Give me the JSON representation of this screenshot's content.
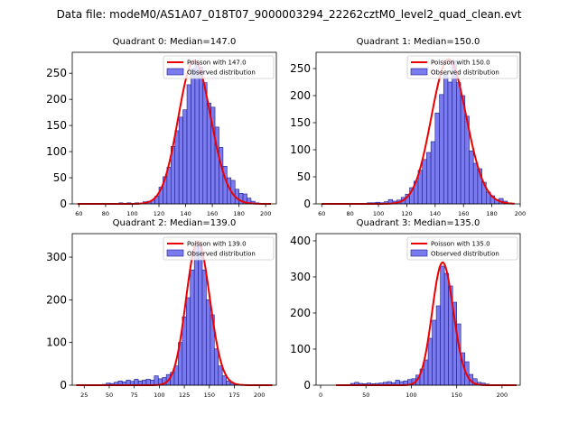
{
  "suptitle": "Data file: modeM0/AS1A07_018T07_9000003294_22262cztM0_level2_quad_clean.evt",
  "colors": {
    "bar_fill": "#7b7bf0",
    "bar_edge": "#1a1a8a",
    "poisson_line": "#ee0000"
  },
  "chart_data": [
    {
      "type": "bar",
      "title": "Quadrant 0: Median=147.0",
      "xlim": [
        55,
        208
      ],
      "ylim": [
        0,
        290
      ],
      "xticks": [
        60,
        80,
        100,
        120,
        140,
        160,
        180,
        200
      ],
      "yticks": [
        0,
        50,
        100,
        150,
        200,
        250
      ],
      "bin_width": 3,
      "bins": [
        [
          84,
          1
        ],
        [
          90,
          2
        ],
        [
          96,
          2
        ],
        [
          102,
          2
        ],
        [
          108,
          4
        ],
        [
          111,
          5
        ],
        [
          114,
          7
        ],
        [
          117,
          15
        ],
        [
          120,
          32
        ],
        [
          123,
          52
        ],
        [
          126,
          70
        ],
        [
          129,
          110
        ],
        [
          132,
          140
        ],
        [
          135,
          166
        ],
        [
          138,
          180
        ],
        [
          141,
          228
        ],
        [
          144,
          259
        ],
        [
          147,
          270
        ],
        [
          150,
          262
        ],
        [
          153,
          232
        ],
        [
          156,
          193
        ],
        [
          159,
          185
        ],
        [
          162,
          147
        ],
        [
          165,
          108
        ],
        [
          168,
          72
        ],
        [
          171,
          50
        ],
        [
          174,
          45
        ],
        [
          177,
          28
        ],
        [
          180,
          20
        ],
        [
          183,
          19
        ],
        [
          186,
          11
        ],
        [
          189,
          5
        ],
        [
          192,
          2
        ]
      ],
      "poisson": {
        "mean": 147.0,
        "scale": 274
      },
      "legend": {
        "line": "Poisson with 147.0",
        "bars": "Observed distribution",
        "loc": "upper right"
      }
    },
    {
      "type": "bar",
      "title": "Quadrant 1: Median=150.0",
      "xlim": [
        56,
        200
      ],
      "ylim": [
        0,
        280
      ],
      "xticks": [
        60,
        80,
        100,
        120,
        140,
        160,
        180,
        200
      ],
      "yticks": [
        0,
        50,
        100,
        150,
        200,
        250
      ],
      "bin_width": 3,
      "bins": [
        [
          92,
          2
        ],
        [
          95,
          2
        ],
        [
          98,
          3
        ],
        [
          101,
          2
        ],
        [
          104,
          4
        ],
        [
          107,
          8
        ],
        [
          110,
          5
        ],
        [
          113,
          7
        ],
        [
          116,
          12
        ],
        [
          119,
          18
        ],
        [
          122,
          30
        ],
        [
          125,
          42
        ],
        [
          128,
          62
        ],
        [
          131,
          82
        ],
        [
          134,
          95
        ],
        [
          137,
          115
        ],
        [
          140,
          168
        ],
        [
          143,
          202
        ],
        [
          146,
          240
        ],
        [
          149,
          225
        ],
        [
          152,
          265
        ],
        [
          155,
          224
        ],
        [
          158,
          200
        ],
        [
          161,
          162
        ],
        [
          164,
          98
        ],
        [
          167,
          75
        ],
        [
          170,
          65
        ],
        [
          173,
          40
        ],
        [
          176,
          22
        ],
        [
          179,
          15
        ],
        [
          182,
          8
        ],
        [
          185,
          10
        ],
        [
          188,
          5
        ],
        [
          191,
          2
        ]
      ],
      "poisson": {
        "mean": 150.0,
        "scale": 267
      },
      "legend": {
        "line": "Poisson with 150.0",
        "bars": "Observed distribution",
        "loc": "upper right"
      }
    },
    {
      "type": "bar",
      "title": "Quadrant 2: Median=139.0",
      "xlim": [
        13,
        217
      ],
      "ylim": [
        0,
        355
      ],
      "xticks": [
        25,
        50,
        75,
        100,
        125,
        150,
        175,
        200
      ],
      "yticks": [
        0,
        100,
        200,
        300
      ],
      "bin_width": 4,
      "bins": [
        [
          43,
          2
        ],
        [
          47,
          5
        ],
        [
          51,
          4
        ],
        [
          55,
          7
        ],
        [
          59,
          10
        ],
        [
          63,
          8
        ],
        [
          67,
          12
        ],
        [
          71,
          9
        ],
        [
          75,
          14
        ],
        [
          79,
          10
        ],
        [
          83,
          12
        ],
        [
          87,
          14
        ],
        [
          91,
          12
        ],
        [
          95,
          22
        ],
        [
          99,
          15
        ],
        [
          103,
          18
        ],
        [
          107,
          25
        ],
        [
          111,
          30
        ],
        [
          115,
          45
        ],
        [
          119,
          100
        ],
        [
          123,
          160
        ],
        [
          127,
          205
        ],
        [
          131,
          270
        ],
        [
          135,
          325
        ],
        [
          139,
          330
        ],
        [
          143,
          270
        ],
        [
          147,
          200
        ],
        [
          151,
          165
        ],
        [
          155,
          85
        ],
        [
          159,
          45
        ],
        [
          163,
          22
        ],
        [
          167,
          10
        ],
        [
          171,
          6
        ],
        [
          175,
          3
        ]
      ],
      "poisson": {
        "mean": 139.0,
        "scale": 337
      },
      "legend": {
        "line": "Poisson with 139.0",
        "bars": "Observed distribution",
        "loc": "upper right"
      }
    },
    {
      "type": "bar",
      "title": "Quadrant 3: Median=135.0",
      "xlim": [
        -5,
        220
      ],
      "ylim": [
        0,
        420
      ],
      "xticks": [
        0,
        50,
        100,
        150,
        200
      ],
      "yticks": [
        0,
        100,
        200,
        300,
        400
      ],
      "bin_width": 4.5,
      "bins": [
        [
          33,
          5
        ],
        [
          37.5,
          8
        ],
        [
          42,
          5
        ],
        [
          46.5,
          4
        ],
        [
          51,
          6
        ],
        [
          55.5,
          4
        ],
        [
          60,
          5
        ],
        [
          64.5,
          6
        ],
        [
          69,
          8
        ],
        [
          73.5,
          10
        ],
        [
          78,
          7
        ],
        [
          82.5,
          14
        ],
        [
          87,
          10
        ],
        [
          91.5,
          12
        ],
        [
          96,
          16
        ],
        [
          100.5,
          18
        ],
        [
          105,
          28
        ],
        [
          109.5,
          45
        ],
        [
          114,
          70
        ],
        [
          118.5,
          130
        ],
        [
          123,
          180
        ],
        [
          127.5,
          220
        ],
        [
          132,
          330
        ],
        [
          136.5,
          310
        ],
        [
          141,
          275
        ],
        [
          145.5,
          230
        ],
        [
          150,
          170
        ],
        [
          154.5,
          90
        ],
        [
          159,
          65
        ],
        [
          163.5,
          30
        ],
        [
          168,
          18
        ],
        [
          172.5,
          8
        ],
        [
          177,
          6
        ],
        [
          181.5,
          3
        ]
      ],
      "poisson": {
        "mean": 135.0,
        "scale": 340
      },
      "legend": {
        "line": "Poisson with 135.0",
        "bars": "Observed distribution",
        "loc": "upper right"
      }
    }
  ]
}
